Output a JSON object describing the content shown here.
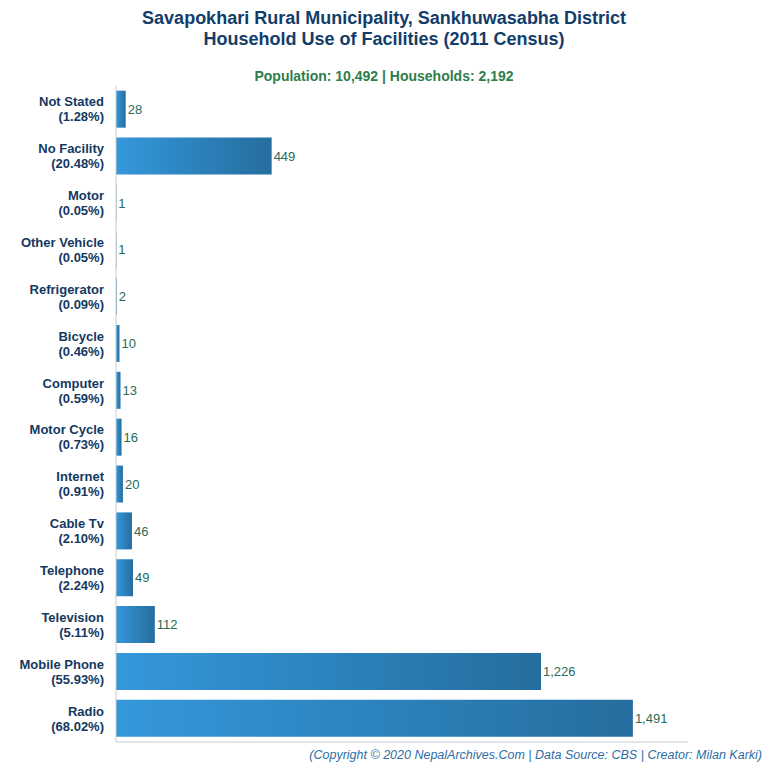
{
  "chart_data": {
    "type": "bar",
    "orientation": "horizontal",
    "title": "Savapokhari Rural Municipality, Sankhuwasabha District\nHousehold Use of Facilities (2011 Census)",
    "subtitle": "Population: 10,492 | Households: 2,192",
    "annotations": [
      "(Copyright © 2020 NepalArchives.Com | Data Source: CBS | Creator: Milan Karki)"
    ],
    "categories": [
      "Not Stated (1.28%)",
      "No Facility (20.48%)",
      "Motor (0.05%)",
      "Other Vehicle (0.05%)",
      "Refrigerator (0.09%)",
      "Bicycle (0.46%)",
      "Computer (0.59%)",
      "Motor Cycle (0.73%)",
      "Internet (0.91%)",
      "Cable Tv (2.10%)",
      "Telephone (2.24%)",
      "Television (5.11%)",
      "Mobile Phone (55.93%)",
      "Radio (68.02%)"
    ],
    "values": [
      28,
      449,
      1,
      1,
      2,
      10,
      13,
      16,
      20,
      46,
      49,
      112,
      1226,
      1491
    ],
    "value_labels": [
      "28",
      "449",
      "1",
      "1",
      "2",
      "10",
      "13",
      "16",
      "20",
      "46",
      "49",
      "112",
      "1,226",
      "1,491"
    ],
    "data_labels": true,
    "color": "#3498db",
    "xlim": [
      0,
      1650
    ],
    "tick_labels": "y",
    "grid": false
  }
}
